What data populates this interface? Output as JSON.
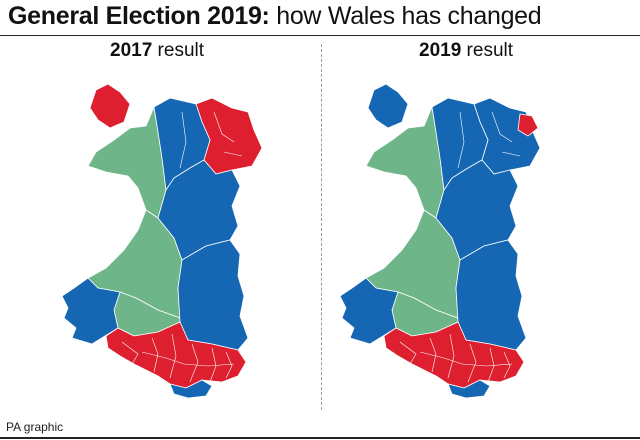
{
  "header": {
    "title_bold": "General Election 2019:",
    "title_light": " how Wales has changed"
  },
  "panels": [
    {
      "year": "2017",
      "suffix": " result"
    },
    {
      "year": "2019",
      "suffix": " result"
    }
  ],
  "footer": {
    "credit": "PA graphic"
  },
  "colors": {
    "conservative": "#1566b3",
    "labour": "#dd1f2f",
    "plaid_cymru": "#6fb58a",
    "boundary": "#ffffff"
  }
}
